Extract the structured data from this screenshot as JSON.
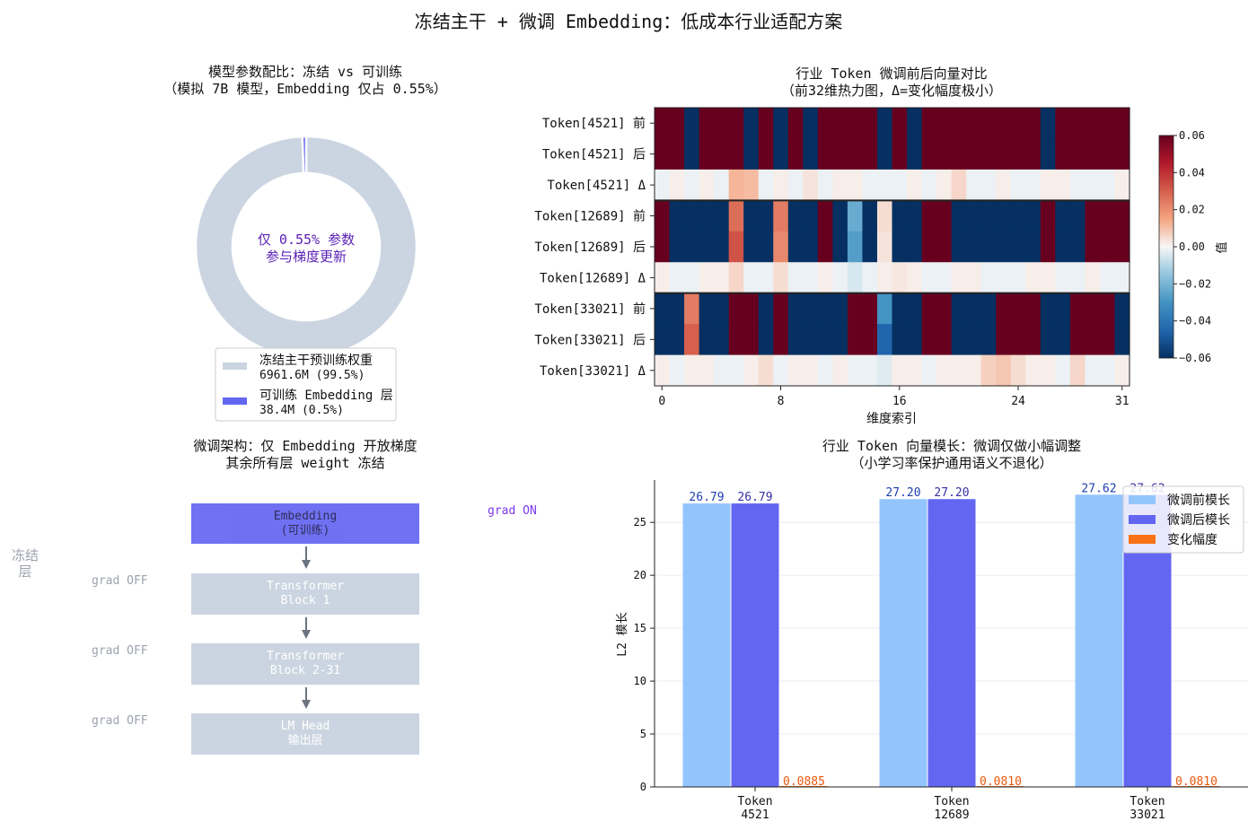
{
  "suptitle": "冻结主干 + 微调 Embedding：低成本行业适配方案",
  "colors": {
    "frozen": "#cbd5e1",
    "trainable": "#6366f1",
    "before_bar": "#93c5fd",
    "delta": "#f97316",
    "purple_text": "#5b21b6",
    "frozen_text": "#9ca3af",
    "arrow": "#6b7280"
  },
  "donut": {
    "title_line1": "模型参数配比：冻结 vs 可训练",
    "title_line2": "（模拟 7B 模型，Embedding 仅占 0.55%）",
    "center_line1": "仅 0.55% 参数",
    "center_line2": "参与梯度更新",
    "legend": [
      {
        "line1": "冻结主干预训练权重",
        "line2": "6961.6M (99.5%)"
      },
      {
        "line1": "可训练 Embedding 层",
        "line2": "38.4M (0.5%)"
      }
    ]
  },
  "arch": {
    "title_line1": "微调架构：仅 Embedding 开放梯度",
    "title_line2": "其余所有层 weight 冻结",
    "side_label_line1": "冻结",
    "side_label_line2": "层",
    "grad_on": "grad ON",
    "grad_off": "grad OFF",
    "blocks": [
      {
        "line1": "Embedding",
        "line2": "(可训练)",
        "trainable": true
      },
      {
        "line1": "Transformer",
        "line2": "Block 1",
        "trainable": false
      },
      {
        "line1": "Transformer",
        "line2": "Block 2-31",
        "trainable": false
      },
      {
        "line1": "LM Head",
        "line2": "输出层",
        "trainable": false
      }
    ]
  },
  "heatmap_text": {
    "title_line1": "行业 Token 微调前后向量对比",
    "title_line2": "（前32维热力图，Δ=变化幅度极小）",
    "xlabel": "维度索引",
    "colorbar_label": "值"
  },
  "bar_text": {
    "title_line1": "行业 Token 向量模长：微调仅做小幅调整",
    "title_line2": "（小学习率保护通用语义不退化）",
    "ylabel": "L2 模长"
  },
  "chart_data": [
    {
      "type": "pie",
      "labels": [
        "冻结主干预训练权重",
        "可训练 Embedding 层"
      ],
      "values": [
        6961.6,
        38.4
      ],
      "percent_labels": [
        "99.5%",
        "0.5%"
      ],
      "donut": true,
      "legend_position": "bottom-center"
    },
    {
      "type": "heatmap",
      "rows": [
        "Token[4521] 前",
        "Token[4521] 后",
        "Token[4521] Δ",
        "Token[12689] 前",
        "Token[12689] 后",
        "Token[12689] Δ",
        "Token[33021] 前",
        "Token[33021] 后",
        "Token[33021] Δ"
      ],
      "x_ticks": [
        0,
        8,
        16,
        24,
        31
      ],
      "colorbar_ticks": [
        0.06,
        0.04,
        0.02,
        0.0,
        -0.02,
        -0.04,
        -0.06
      ],
      "vmin": -0.06,
      "vmax": 0.06,
      "colormap": "RdBu_r",
      "signs": [
        [
          1,
          1,
          -1,
          1,
          1,
          1,
          -1,
          1,
          -1,
          1,
          -1,
          1,
          1,
          1,
          1,
          -1,
          1,
          -1,
          1,
          1,
          1,
          1,
          1,
          1,
          1,
          1,
          -1,
          1,
          1,
          1,
          1,
          1
        ],
        [
          1,
          1,
          -1,
          1,
          1,
          1,
          -1,
          1,
          -1,
          1,
          -1,
          1,
          1,
          1,
          1,
          -1,
          1,
          -1,
          1,
          1,
          1,
          1,
          1,
          1,
          1,
          1,
          -1,
          1,
          1,
          1,
          1,
          1
        ],
        [
          -1,
          1,
          -1,
          1,
          -1,
          -1,
          -1,
          -1,
          1,
          -1,
          -1,
          -1,
          1,
          1,
          -1,
          -1,
          -1,
          1,
          -1,
          1,
          1,
          -1,
          -1,
          1,
          -1,
          -1,
          1,
          1,
          -1,
          -1,
          -1,
          1
        ],
        [
          1,
          -1,
          -1,
          -1,
          -1,
          1,
          -1,
          -1,
          1,
          -1,
          -1,
          1,
          -1,
          -1,
          -1,
          1,
          -1,
          -1,
          1,
          1,
          -1,
          -1,
          -1,
          -1,
          -1,
          -1,
          1,
          -1,
          -1,
          1,
          1,
          1
        ],
        [
          1,
          -1,
          -1,
          -1,
          -1,
          1,
          -1,
          -1,
          1,
          -1,
          -1,
          1,
          -1,
          -1,
          -1,
          1,
          -1,
          -1,
          1,
          1,
          -1,
          -1,
          -1,
          -1,
          -1,
          -1,
          1,
          -1,
          -1,
          1,
          1,
          1
        ],
        [
          1,
          -1,
          -1,
          1,
          1,
          -1,
          -1,
          -1,
          1,
          -1,
          -1,
          1,
          -1,
          -1,
          -1,
          1,
          -1,
          1,
          -1,
          -1,
          1,
          1,
          -1,
          -1,
          -1,
          1,
          1,
          -1,
          -1,
          1,
          -1,
          -1
        ],
        [
          -1,
          -1,
          1,
          -1,
          -1,
          1,
          1,
          -1,
          1,
          -1,
          -1,
          -1,
          -1,
          1,
          1,
          -1,
          -1,
          -1,
          1,
          1,
          -1,
          -1,
          -1,
          1,
          1,
          1,
          -1,
          -1,
          1,
          1,
          1,
          -1
        ],
        [
          -1,
          -1,
          1,
          -1,
          -1,
          1,
          1,
          -1,
          1,
          -1,
          -1,
          -1,
          -1,
          1,
          1,
          -1,
          -1,
          -1,
          1,
          1,
          -1,
          -1,
          -1,
          1,
          1,
          1,
          -1,
          -1,
          1,
          1,
          1,
          -1
        ],
        [
          1,
          -1,
          1,
          1,
          -1,
          -1,
          1,
          1,
          -1,
          1,
          1,
          -1,
          1,
          -1,
          -1,
          -1,
          1,
          1,
          -1,
          1,
          1,
          1,
          -1,
          1,
          1,
          1,
          1,
          -1,
          1,
          -1,
          -1,
          1
        ]
      ],
      "weak_cells": [
        [
          3,
          5,
          0.45
        ],
        [
          3,
          8,
          0.4
        ],
        [
          3,
          13,
          -0.38
        ],
        [
          3,
          15,
          0.08
        ],
        [
          4,
          5,
          0.55
        ],
        [
          4,
          8,
          0.35
        ],
        [
          4,
          13,
          -0.45
        ],
        [
          4,
          15,
          0.06
        ],
        [
          6,
          2,
          0.4
        ],
        [
          6,
          15,
          -0.5
        ],
        [
          7,
          2,
          0.5
        ],
        [
          7,
          15,
          -0.75
        ]
      ],
      "delta_cells": [
        [
          2,
          5,
          0.2
        ],
        [
          2,
          6,
          0.18
        ],
        [
          2,
          10,
          0.06
        ],
        [
          2,
          20,
          0.1
        ],
        [
          5,
          5,
          0.1
        ],
        [
          5,
          8,
          0.08
        ],
        [
          5,
          13,
          -0.08
        ],
        [
          5,
          16,
          0.05
        ],
        [
          8,
          7,
          0.08
        ],
        [
          8,
          15,
          -0.06
        ],
        [
          8,
          22,
          0.12
        ],
        [
          8,
          23,
          0.15
        ],
        [
          8,
          24,
          0.08
        ],
        [
          8,
          28,
          0.1
        ]
      ]
    },
    {
      "type": "bar",
      "categories": [
        "Token\n4521",
        "Token\n12689",
        "Token\n33021"
      ],
      "series": [
        {
          "name": "微调前模长",
          "values": [
            26.79,
            27.2,
            27.62
          ]
        },
        {
          "name": "微调后模长",
          "values": [
            26.79,
            27.2,
            27.62
          ]
        },
        {
          "name": "变化幅度",
          "values": [
            0.0885,
            0.081,
            0.081
          ]
        }
      ],
      "data_labels": [
        [
          "26.79",
          "27.20",
          "27.62"
        ],
        [
          "26.79",
          "27.20",
          "27.62"
        ],
        [
          "0.0885",
          "0.0810",
          "0.0810"
        ]
      ],
      "ylim": [
        0,
        29
      ],
      "yticks": [
        0,
        5,
        10,
        15,
        20,
        25
      ],
      "grid": "y",
      "legend_position": "top-right"
    }
  ]
}
